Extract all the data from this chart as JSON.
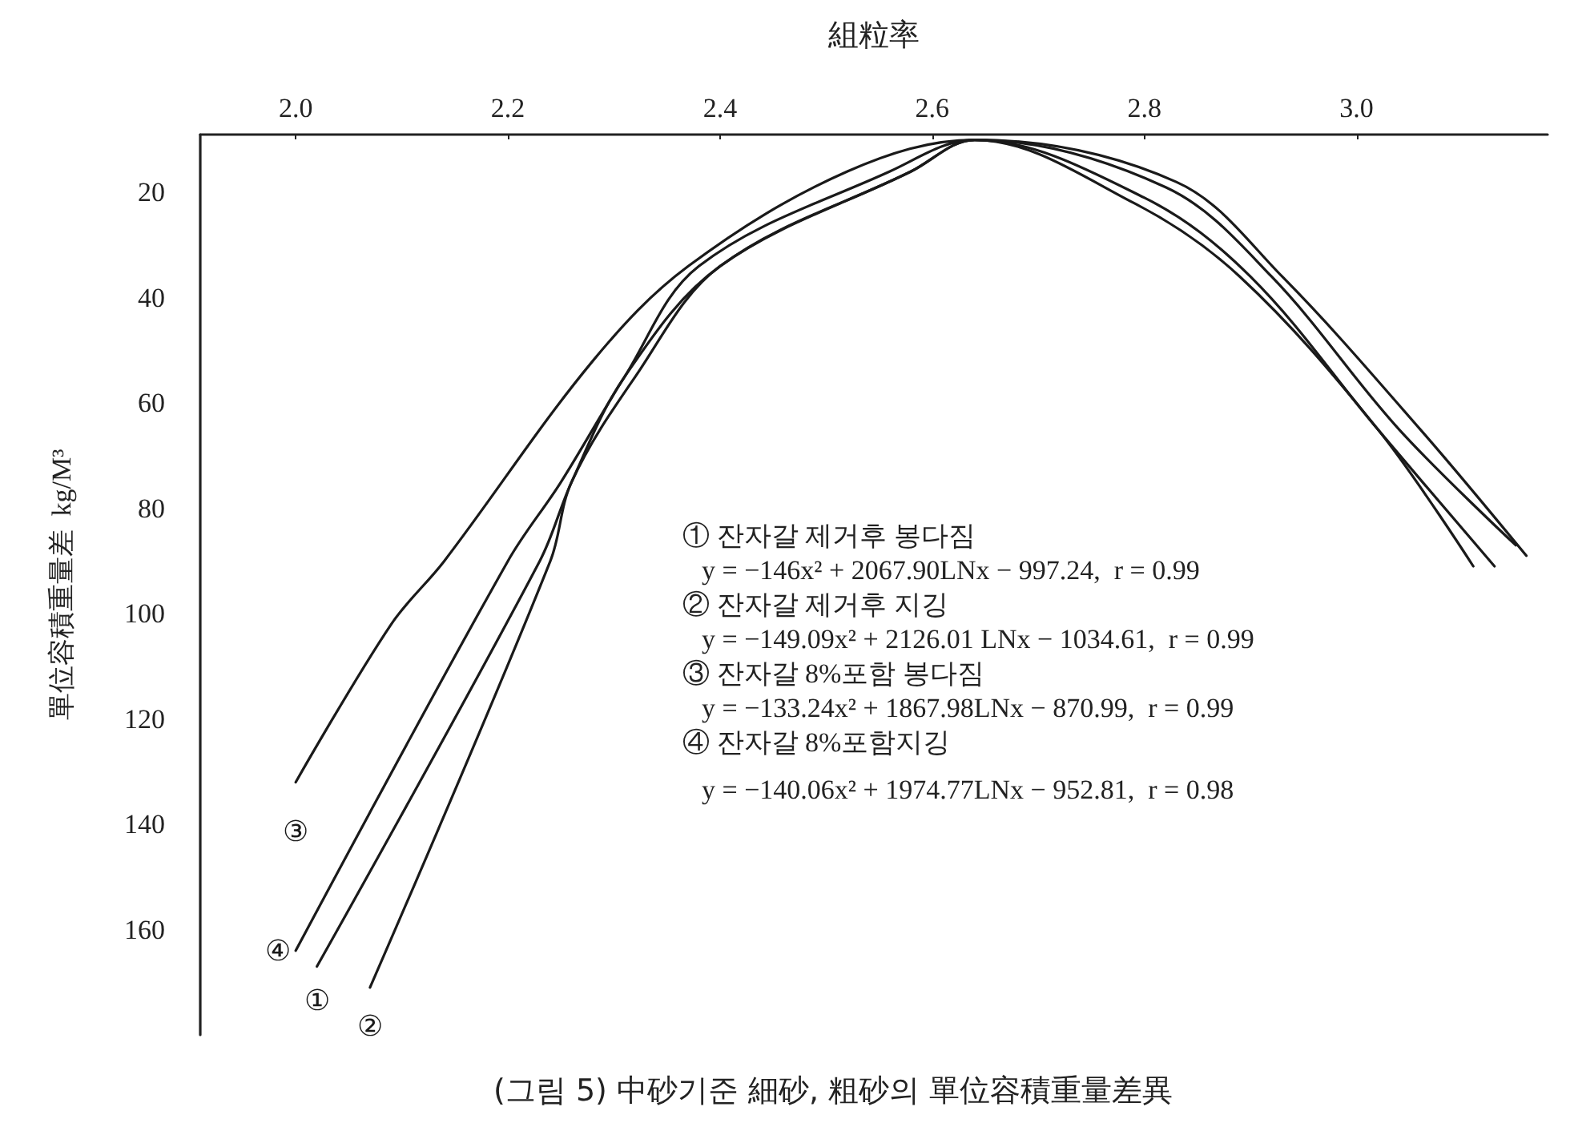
{
  "chart_data": {
    "type": "line",
    "title": "(그림 5) 中砂기준 細砂, 粗砂의 單位容積重量差異",
    "xlabel": "組粒率",
    "ylabel": "單位容積重量差  kg/M³",
    "xlim": [
      1.91,
      3.18
    ],
    "xticks": [
      {
        "value": 2,
        "label": "2.0"
      },
      {
        "value": 2.2,
        "label": "2.2"
      },
      {
        "value": 2.4,
        "label": "2.4"
      },
      {
        "value": 2.6,
        "label": "2.6"
      },
      {
        "value": 2.8,
        "label": "2.8"
      },
      {
        "value": 3,
        "label": "3.0"
      }
    ],
    "ylim": [
      180,
      9
    ],
    "yticks": [
      20,
      40,
      60,
      80,
      100,
      120,
      140,
      160
    ],
    "grid": false,
    "legend": false,
    "marker": "none",
    "line_style": "solid",
    "series": [
      {
        "name": "③",
        "color": "#1a1a1a",
        "x": [
          2.0,
          2.09,
          2.14,
          2.28,
          2.37,
          2.52,
          2.64,
          2.83,
          2.93,
          3.06,
          3.16
        ],
        "values": [
          132,
          102,
          90,
          52,
          34,
          16,
          10,
          18,
          36,
          65,
          89
        ]
      },
      {
        "name": "④",
        "color": "#1a1a1a",
        "x": [
          2.0,
          2.2,
          2.25,
          2.31,
          2.38,
          2.56,
          2.64,
          2.82,
          2.92,
          3.04,
          3.15
        ],
        "values": [
          164,
          90,
          75,
          55,
          34,
          16,
          10,
          19,
          36,
          65,
          87
        ]
      },
      {
        "name": "①",
        "color": "#1a1a1a",
        "x": [
          2.02,
          2.23,
          2.26,
          2.31,
          2.4,
          2.58,
          2.64,
          2.8,
          2.9,
          3.02,
          3.13
        ],
        "values": [
          167,
          90,
          75,
          55,
          34,
          16,
          10,
          21,
          36,
          65,
          91
        ]
      },
      {
        "name": "②",
        "color": "#1a1a1a",
        "x": [
          2.07,
          2.24,
          2.26,
          2.32,
          2.4,
          2.58,
          2.64,
          2.79,
          2.89,
          3.02,
          3.11
        ],
        "values": [
          171,
          90,
          75,
          55,
          34,
          16,
          10,
          22,
          36,
          65,
          91
        ]
      }
    ],
    "annotations": [
      "① 잔자갈 제거후 봉다짐",
      "y = −146x² + 2067.90LNx − 997.24,  r = 0.99",
      "② 잔자갈 제거후 지깅",
      "y = −149.09x² + 2126.01 LNx − 1034.61,  r = 0.99",
      "③ 잔자갈 8%포함 봉다짐",
      "y = −133.24x² + 1867.98LNx − 870.99,  r = 0.99",
      "④ 잔자갈 8%포함지깅",
      "y = −140.06x² + 1974.77LNx − 952.81,  r = 0.98"
    ]
  }
}
